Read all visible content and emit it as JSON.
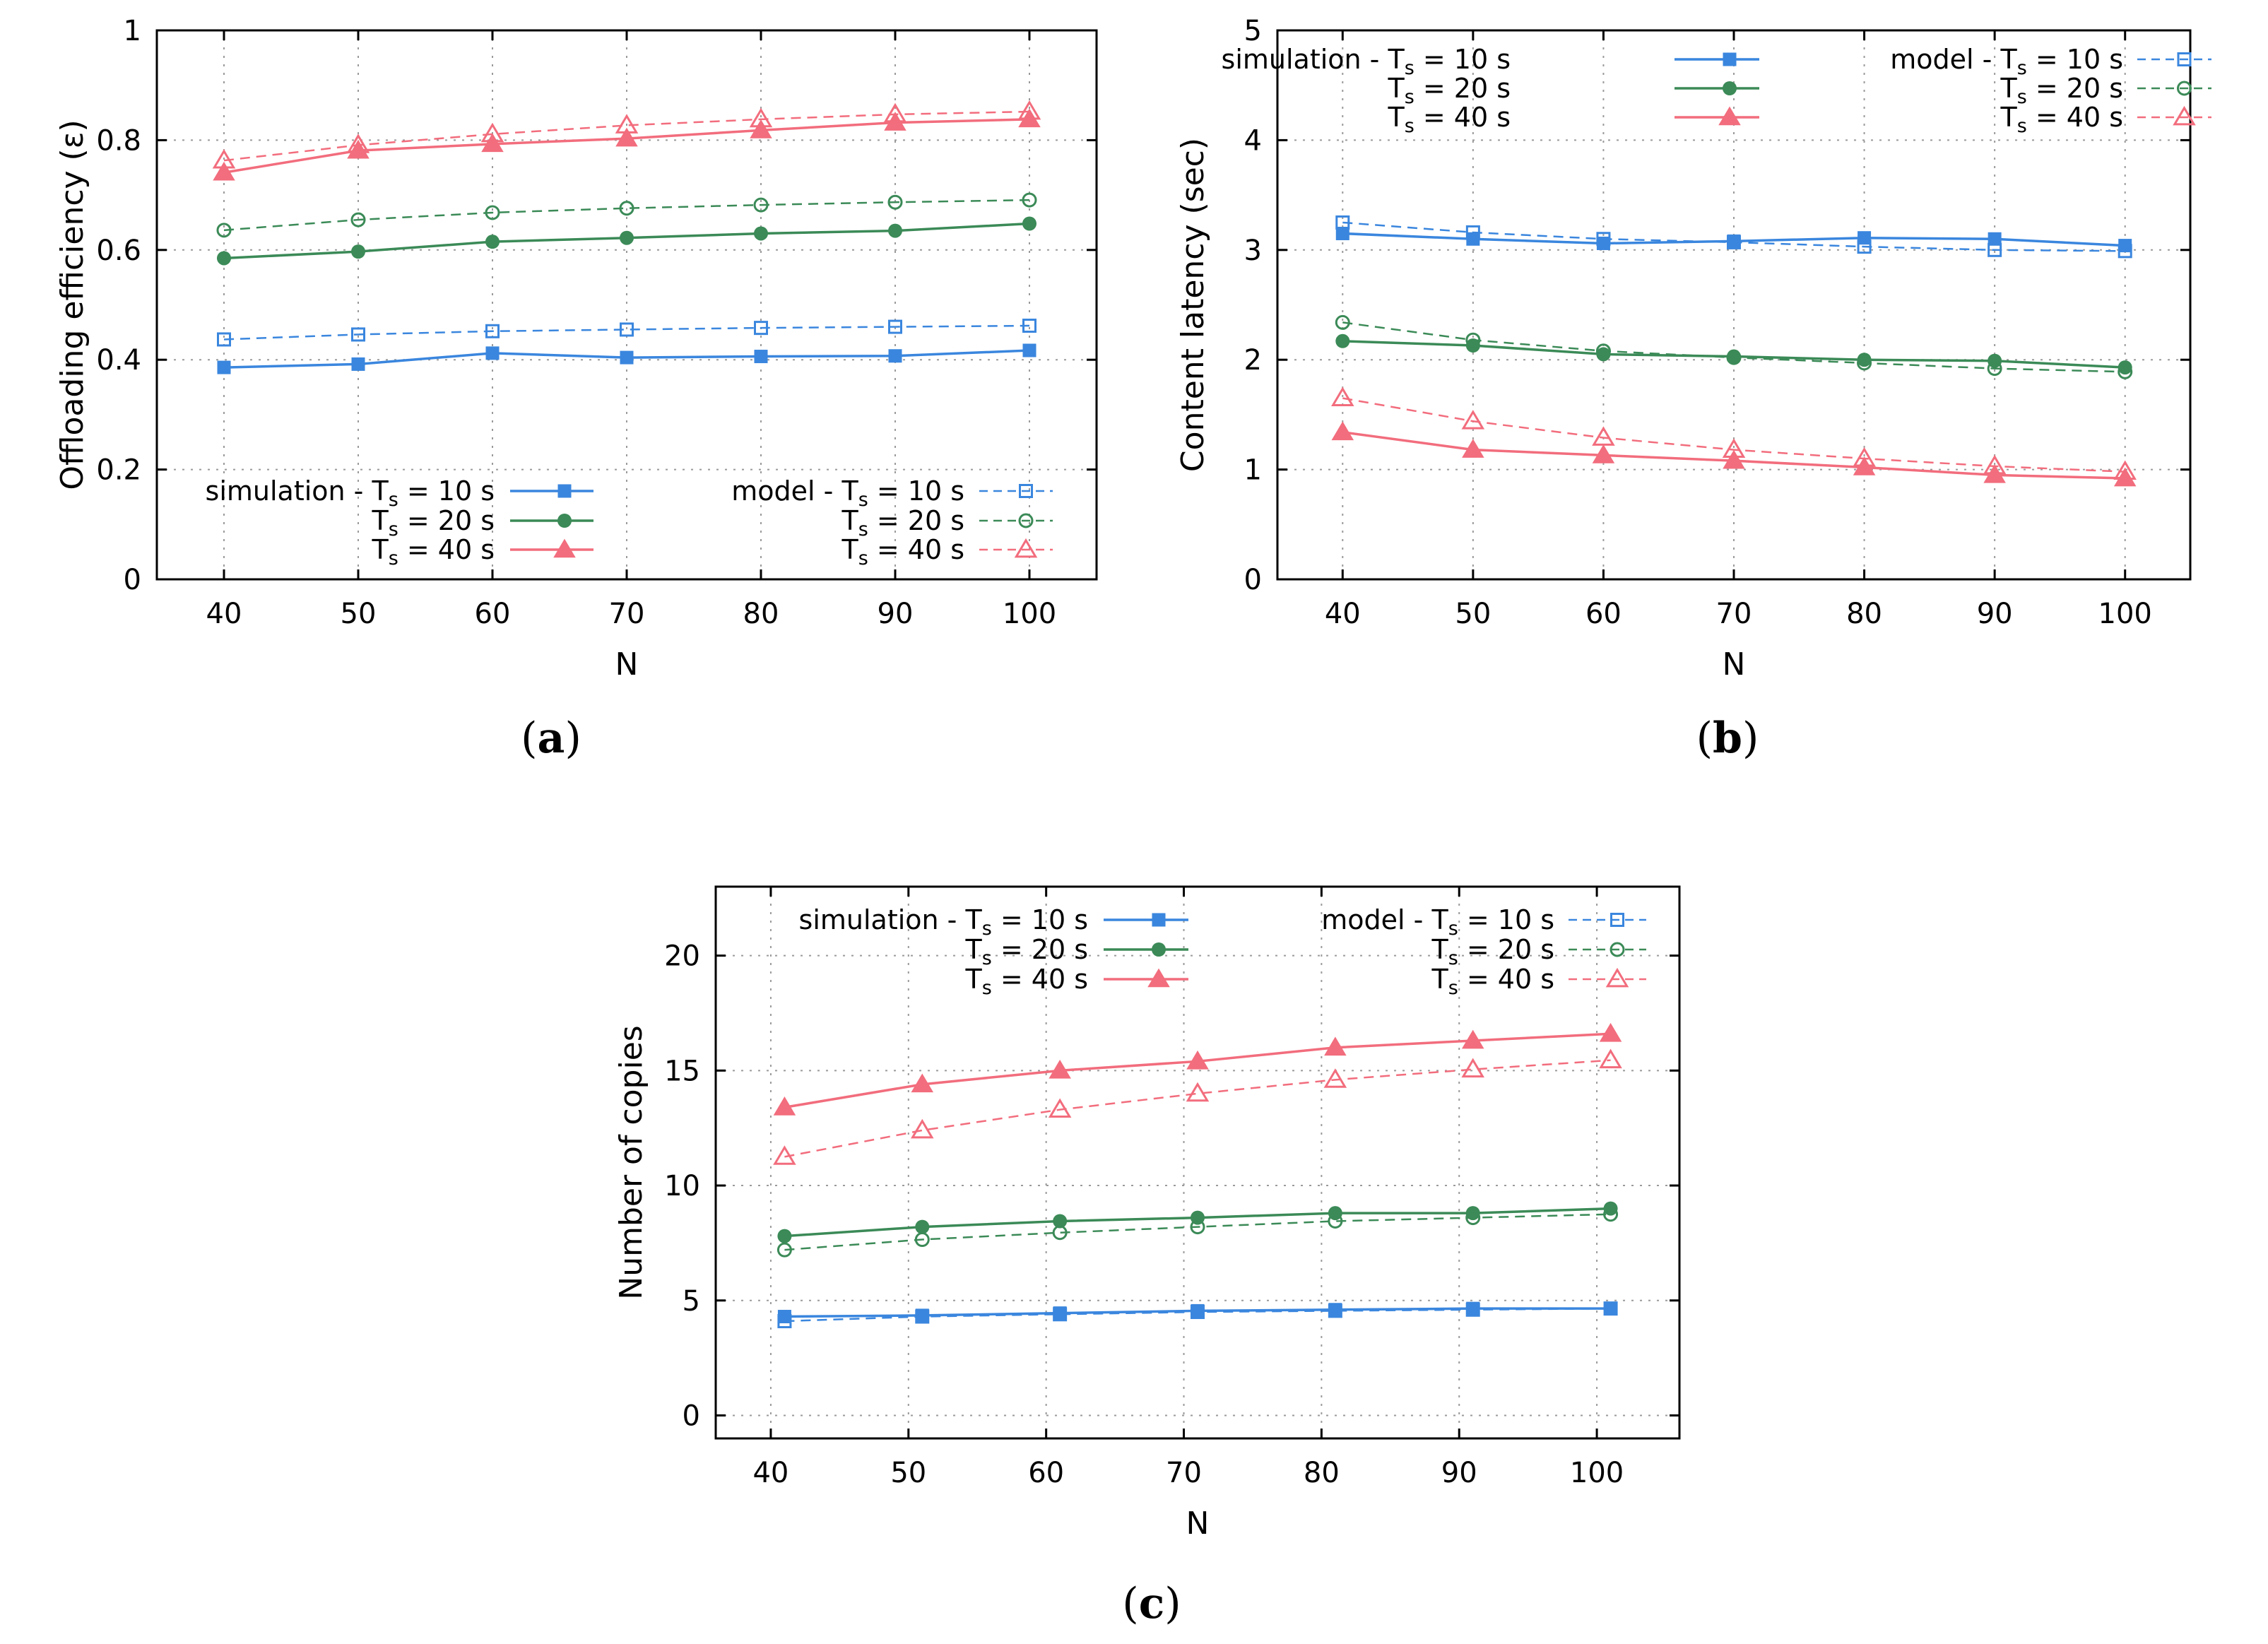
{
  "colors": {
    "Ts10": "#3a86de",
    "Ts20": "#3b8a57",
    "Ts40": "#f26d7d"
  },
  "legend": {
    "simulation_prefix": "simulation - T",
    "model_prefix": "model - T",
    "T": "T",
    "sub": "s",
    "s10": " = 10 s",
    "s20": " = 20 s",
    "s40": " = 40 s"
  },
  "chart_data": [
    {
      "id": "a",
      "type": "line",
      "caption": "a",
      "xlabel": "N",
      "ylabel": "Offloading efficiency (ε)",
      "xlim": [
        35,
        105
      ],
      "ylim": [
        0,
        1
      ],
      "xticks": [
        40,
        50,
        60,
        70,
        80,
        90,
        100
      ],
      "yticks": [
        0,
        0.2,
        0.4,
        0.6,
        0.8,
        1
      ],
      "ytick_labels": [
        "0",
        "0.2",
        "0.4",
        "0.6",
        "0.8",
        "1"
      ],
      "legend_position": "lower",
      "series": [
        {
          "name": "simulation - Ts = 10 s",
          "key": "Ts10",
          "kind": "simulation",
          "marker": "square",
          "filled": true,
          "dashed": false,
          "x": [
            40,
            50,
            60,
            70,
            80,
            90,
            100
          ],
          "values": [
            0.386,
            0.392,
            0.412,
            0.404,
            0.406,
            0.407,
            0.417
          ]
        },
        {
          "name": "Ts = 20 s",
          "key": "Ts20",
          "kind": "simulation",
          "marker": "circle",
          "filled": true,
          "dashed": false,
          "x": [
            40,
            50,
            60,
            70,
            80,
            90,
            100
          ],
          "values": [
            0.585,
            0.597,
            0.615,
            0.622,
            0.63,
            0.635,
            0.648
          ]
        },
        {
          "name": "Ts = 40 s",
          "key": "Ts40",
          "kind": "simulation",
          "marker": "triangle",
          "filled": true,
          "dashed": false,
          "x": [
            40,
            50,
            60,
            70,
            80,
            90,
            100
          ],
          "values": [
            0.741,
            0.781,
            0.793,
            0.803,
            0.818,
            0.832,
            0.838
          ]
        },
        {
          "name": "model - Ts = 10 s",
          "key": "Ts10",
          "kind": "model",
          "marker": "square",
          "filled": false,
          "dashed": true,
          "x": [
            40,
            50,
            60,
            70,
            80,
            90,
            100
          ],
          "values": [
            0.437,
            0.446,
            0.452,
            0.455,
            0.458,
            0.46,
            0.462
          ]
        },
        {
          "name": "Ts = 20 s",
          "key": "Ts20",
          "kind": "model",
          "marker": "circle",
          "filled": false,
          "dashed": true,
          "x": [
            40,
            50,
            60,
            70,
            80,
            90,
            100
          ],
          "values": [
            0.636,
            0.655,
            0.668,
            0.676,
            0.682,
            0.687,
            0.691
          ]
        },
        {
          "name": "Ts = 40 s",
          "key": "Ts40",
          "kind": "model",
          "marker": "triangle",
          "filled": false,
          "dashed": true,
          "x": [
            40,
            50,
            60,
            70,
            80,
            90,
            100
          ],
          "values": [
            0.763,
            0.791,
            0.811,
            0.827,
            0.838,
            0.847,
            0.852
          ]
        }
      ]
    },
    {
      "id": "b",
      "type": "line",
      "caption": "b",
      "xlabel": "N",
      "ylabel": "Content latency (sec)",
      "xlim": [
        35,
        105
      ],
      "ylim": [
        0,
        5
      ],
      "xticks": [
        40,
        50,
        60,
        70,
        80,
        90,
        100
      ],
      "yticks": [
        0,
        1,
        2,
        3,
        4,
        5
      ],
      "ytick_labels": [
        "0",
        "1",
        "2",
        "3",
        "4",
        "5"
      ],
      "legend_position": "top",
      "series": [
        {
          "name": "simulation - Ts = 10 s",
          "key": "Ts10",
          "kind": "simulation",
          "marker": "square",
          "filled": true,
          "dashed": false,
          "x": [
            40,
            50,
            60,
            70,
            80,
            90,
            100
          ],
          "values": [
            3.15,
            3.1,
            3.06,
            3.08,
            3.11,
            3.1,
            3.04
          ]
        },
        {
          "name": "Ts = 20 s",
          "key": "Ts20",
          "kind": "simulation",
          "marker": "circle",
          "filled": true,
          "dashed": false,
          "x": [
            40,
            50,
            60,
            70,
            80,
            90,
            100
          ],
          "values": [
            2.17,
            2.13,
            2.05,
            2.03,
            2.0,
            1.99,
            1.93
          ]
        },
        {
          "name": "Ts = 40 s",
          "key": "Ts40",
          "kind": "simulation",
          "marker": "triangle",
          "filled": true,
          "dashed": false,
          "x": [
            40,
            50,
            60,
            70,
            80,
            90,
            100
          ],
          "values": [
            1.34,
            1.18,
            1.13,
            1.08,
            1.02,
            0.95,
            0.92
          ]
        },
        {
          "name": "model - Ts = 10 s",
          "key": "Ts10",
          "kind": "model",
          "marker": "square",
          "filled": false,
          "dashed": true,
          "x": [
            40,
            50,
            60,
            70,
            80,
            90,
            100
          ],
          "values": [
            3.25,
            3.16,
            3.1,
            3.07,
            3.03,
            3.0,
            2.99
          ]
        },
        {
          "name": "Ts = 20 s",
          "key": "Ts20",
          "kind": "model",
          "marker": "circle",
          "filled": false,
          "dashed": true,
          "x": [
            40,
            50,
            60,
            70,
            80,
            90,
            100
          ],
          "values": [
            2.34,
            2.18,
            2.08,
            2.02,
            1.97,
            1.92,
            1.89
          ]
        },
        {
          "name": "Ts = 40 s",
          "key": "Ts40",
          "kind": "model",
          "marker": "triangle",
          "filled": false,
          "dashed": true,
          "x": [
            40,
            50,
            60,
            70,
            80,
            90,
            100
          ],
          "values": [
            1.65,
            1.44,
            1.29,
            1.18,
            1.1,
            1.03,
            0.98
          ]
        }
      ]
    },
    {
      "id": "c",
      "type": "line",
      "caption": "c",
      "xlabel": "N",
      "ylabel": "Number of copies",
      "xlim": [
        36,
        106
      ],
      "ylim": [
        -1,
        23
      ],
      "xticks": [
        40,
        50,
        60,
        70,
        80,
        90,
        100
      ],
      "yticks": [
        0,
        5,
        10,
        15,
        20
      ],
      "ytick_labels": [
        "0",
        "5",
        "10",
        "15",
        "20"
      ],
      "legend_position": "top",
      "series": [
        {
          "name": "simulation - Ts = 10 s",
          "key": "Ts10",
          "kind": "simulation",
          "marker": "square",
          "filled": true,
          "dashed": false,
          "x": [
            41,
            51,
            61,
            71,
            81,
            91,
            101
          ],
          "values": [
            4.3,
            4.35,
            4.45,
            4.55,
            4.6,
            4.65,
            4.65
          ]
        },
        {
          "name": "Ts = 20 s",
          "key": "Ts20",
          "kind": "simulation",
          "marker": "circle",
          "filled": true,
          "dashed": false,
          "x": [
            41,
            51,
            61,
            71,
            81,
            91,
            101
          ],
          "values": [
            7.8,
            8.2,
            8.45,
            8.6,
            8.8,
            8.8,
            9.0
          ]
        },
        {
          "name": "Ts = 40 s",
          "key": "Ts40",
          "kind": "simulation",
          "marker": "triangle",
          "filled": true,
          "dashed": false,
          "x": [
            41,
            51,
            61,
            71,
            81,
            91,
            101
          ],
          "values": [
            13.4,
            14.4,
            15.0,
            15.4,
            16.0,
            16.3,
            16.6
          ]
        },
        {
          "name": "model - Ts = 10 s",
          "key": "Ts10",
          "kind": "model",
          "marker": "square",
          "filled": false,
          "dashed": true,
          "x": [
            41,
            51,
            61,
            71,
            81,
            91,
            101
          ],
          "values": [
            4.1,
            4.3,
            4.4,
            4.5,
            4.55,
            4.6,
            4.65
          ]
        },
        {
          "name": "Ts = 20 s",
          "key": "Ts20",
          "kind": "model",
          "marker": "circle",
          "filled": false,
          "dashed": true,
          "x": [
            41,
            51,
            61,
            71,
            81,
            91,
            101
          ],
          "values": [
            7.2,
            7.65,
            7.95,
            8.2,
            8.45,
            8.6,
            8.75
          ]
        },
        {
          "name": "Ts = 40 s",
          "key": "Ts40",
          "kind": "model",
          "marker": "triangle",
          "filled": false,
          "dashed": true,
          "x": [
            41,
            51,
            61,
            71,
            81,
            91,
            101
          ],
          "values": [
            11.25,
            12.4,
            13.3,
            14.0,
            14.6,
            15.05,
            15.45
          ]
        }
      ]
    }
  ]
}
